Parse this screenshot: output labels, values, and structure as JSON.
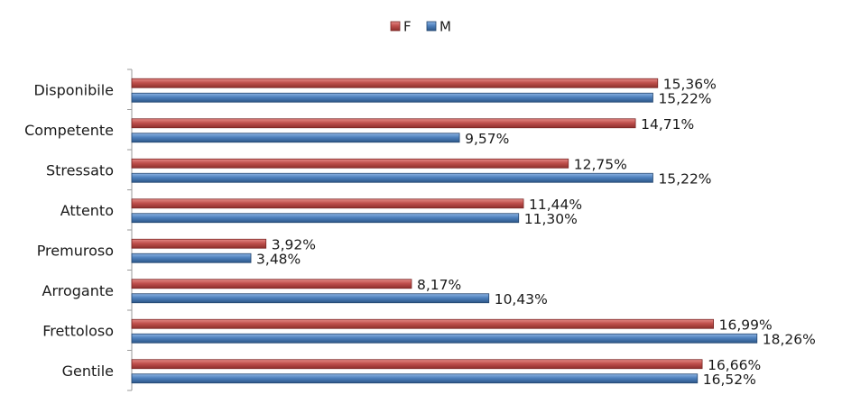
{
  "chart_data": {
    "type": "bar",
    "orientation": "horizontal",
    "categories": [
      "Disponibile",
      "Competente",
      "Stressato",
      "Attento",
      "Premuroso",
      "Arrogante",
      "Frettoloso",
      "Gentile"
    ],
    "series": [
      {
        "name": "F",
        "color": "#c0504d",
        "values": [
          15.36,
          14.71,
          12.75,
          11.44,
          3.92,
          8.17,
          16.99,
          16.66
        ],
        "labels": [
          "15,36%",
          "14,71%",
          "12,75%",
          "11,44%",
          "3,92%",
          "8,17%",
          "16,99%",
          "16,66%"
        ]
      },
      {
        "name": "M",
        "color": "#4f81bd",
        "values": [
          15.22,
          9.57,
          15.22,
          11.3,
          3.48,
          10.43,
          18.26,
          16.52
        ],
        "labels": [
          "15,22%",
          "9,57%",
          "15,22%",
          "11,30%",
          "3,48%",
          "10,43%",
          "18,26%",
          "16,52%"
        ]
      }
    ],
    "xlim": [
      0,
      18.45
    ],
    "grid": false,
    "legend": "top",
    "title": "",
    "xlabel": "",
    "ylabel": ""
  }
}
